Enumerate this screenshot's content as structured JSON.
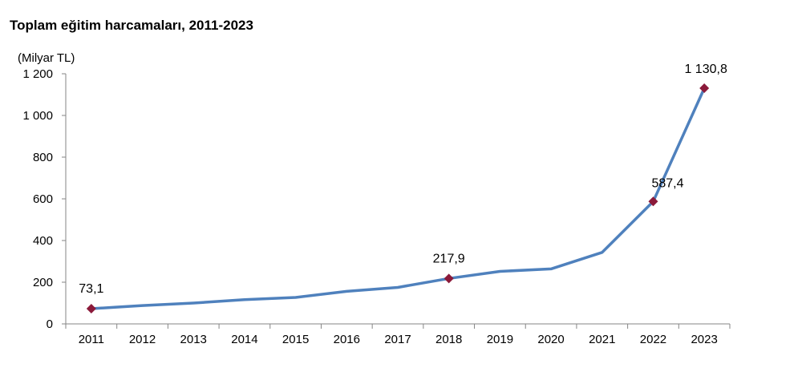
{
  "title": "Toplam eğitim harcamaları, 2011-2023",
  "chart_data": {
    "type": "line",
    "title": "Toplam eğitim harcamaları, 2011-2023",
    "ylabel": "(Milyar TL)",
    "xlabel": "",
    "categories": [
      "2011",
      "2012",
      "2013",
      "2014",
      "2015",
      "2016",
      "2017",
      "2018",
      "2019",
      "2020",
      "2021",
      "2022",
      "2023"
    ],
    "series": [
      {
        "values": [
          73.1,
          88,
          100,
          116,
          127,
          156,
          175,
          217.9,
          252,
          264,
          343,
          587.4,
          1130.8
        ],
        "color": "#4f81bd"
      }
    ],
    "ylim": [
      0,
      1200
    ],
    "yticks": [
      0,
      200,
      400,
      600,
      800,
      1000,
      1200
    ],
    "ytick_labels": [
      "0",
      "200",
      "400",
      "600",
      "800",
      "1 000",
      "1 200"
    ],
    "data_labels": [
      {
        "category": "2011",
        "text": "73,1"
      },
      {
        "category": "2018",
        "text": "217,9"
      },
      {
        "category": "2022",
        "text": "587,4"
      },
      {
        "category": "2023",
        "text": "1 130,8"
      }
    ],
    "marker_color": "#8b1a3a",
    "grid": false,
    "legend": "none"
  }
}
